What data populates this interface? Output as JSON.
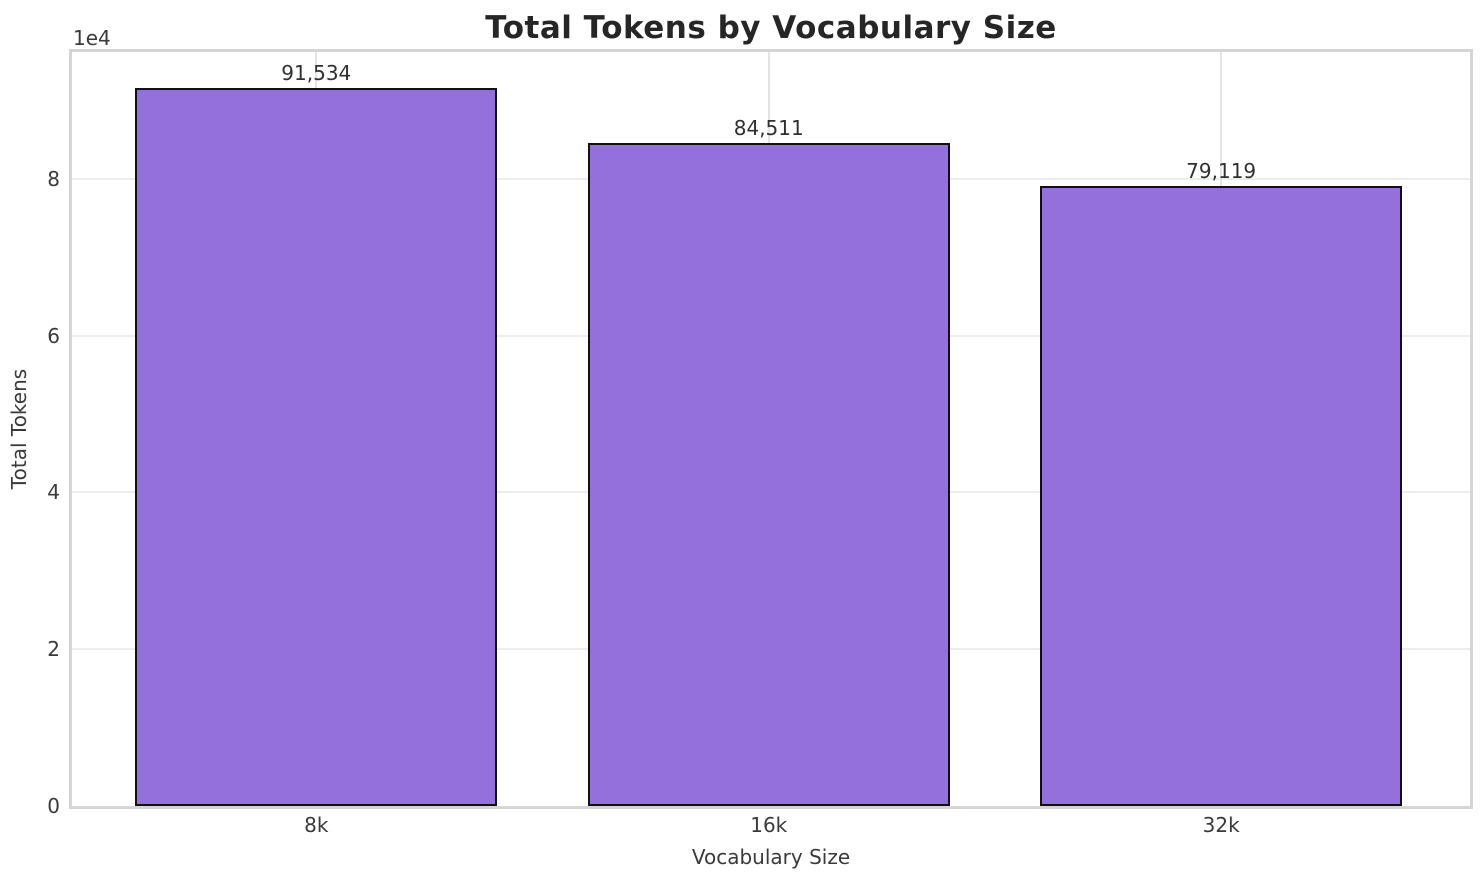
{
  "chart_data": {
    "type": "bar",
    "title": "Total Tokens by Vocabulary Size",
    "xlabel": "Vocabulary Size",
    "ylabel": "Total Tokens",
    "y_offset_text": "1e4",
    "categories": [
      "8k",
      "16k",
      "32k"
    ],
    "values": [
      91534,
      84511,
      79119
    ],
    "value_labels": [
      "91,534",
      "84,511",
      "79,119"
    ],
    "bar_width": 0.8,
    "xlim": [
      -0.54,
      2.55
    ],
    "ylim": [
      0,
      96170
    ],
    "y_ticks": [
      0,
      20000,
      40000,
      60000,
      80000
    ],
    "y_tick_labels": [
      "0",
      "2",
      "4",
      "6",
      "8"
    ],
    "grid": true,
    "legend": "none",
    "colors": {
      "bar_fill": "#9370DB",
      "bar_edge": "#111111",
      "grid_h": "#ededed",
      "grid_v": "#e4e4e4",
      "spine": "#d5d5d5",
      "background": "#ffffff",
      "tick_text": "#3a3a3a",
      "label_text": "#3a3a3a",
      "title_text": "#262626"
    }
  }
}
